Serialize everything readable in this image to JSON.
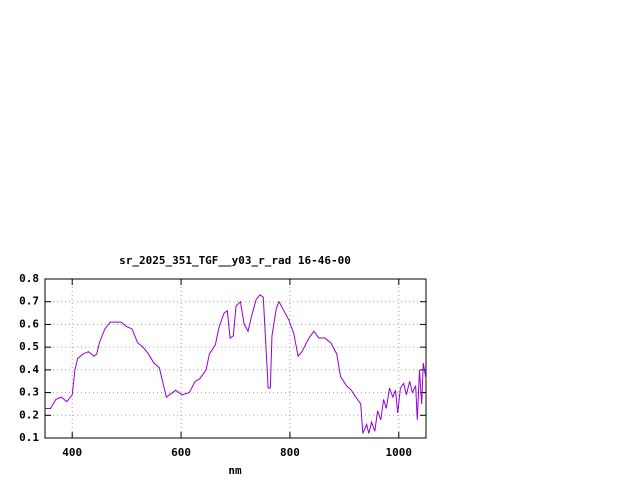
{
  "chart_data": {
    "type": "line",
    "title": "sr_2025_351_TGF__y03_r_rad 16-46-00",
    "x_label": "nm",
    "xlim": [
      350,
      1050
    ],
    "xticks": [
      400,
      600,
      800,
      1000
    ],
    "ylim": [
      0.1,
      0.8
    ],
    "yticks": [
      0.1,
      0.2,
      0.3,
      0.4,
      0.5,
      0.6,
      0.7,
      0.8
    ],
    "grid": true,
    "x": [
      350,
      360,
      370,
      380,
      390,
      400,
      405,
      410,
      420,
      430,
      440,
      445,
      450,
      460,
      470,
      480,
      490,
      500,
      510,
      520,
      530,
      540,
      550,
      560,
      573,
      590,
      602,
      615,
      626,
      634,
      646,
      652,
      663,
      670,
      679,
      685,
      690,
      696,
      701,
      709,
      716,
      723,
      731,
      738,
      745,
      751,
      756,
      760,
      764,
      767,
      775,
      780,
      789,
      798,
      807,
      815,
      822,
      835,
      844,
      853,
      864,
      875,
      886,
      893,
      904,
      913,
      921,
      930,
      934,
      941,
      945,
      950,
      956,
      961,
      967,
      972,
      977,
      983,
      989,
      994,
      998,
      1003,
      1009,
      1014,
      1020,
      1025,
      1031,
      1034,
      1038,
      1042,
      1045,
      1050
    ],
    "series": [
      {
        "color": "#9400d3",
        "values": [
          0.23,
          0.23,
          0.27,
          0.28,
          0.26,
          0.29,
          0.4,
          0.45,
          0.47,
          0.48,
          0.46,
          0.47,
          0.52,
          0.58,
          0.61,
          0.61,
          0.61,
          0.59,
          0.58,
          0.52,
          0.5,
          0.47,
          0.43,
          0.41,
          0.28,
          0.31,
          0.29,
          0.3,
          0.35,
          0.36,
          0.4,
          0.47,
          0.51,
          0.59,
          0.65,
          0.66,
          0.54,
          0.55,
          0.68,
          0.7,
          0.6,
          0.57,
          0.65,
          0.71,
          0.73,
          0.72,
          0.5,
          0.32,
          0.32,
          0.55,
          0.67,
          0.7,
          0.66,
          0.62,
          0.56,
          0.46,
          0.48,
          0.54,
          0.57,
          0.54,
          0.54,
          0.52,
          0.47,
          0.37,
          0.33,
          0.31,
          0.28,
          0.25,
          0.12,
          0.16,
          0.12,
          0.17,
          0.13,
          0.22,
          0.18,
          0.27,
          0.23,
          0.32,
          0.28,
          0.31,
          0.21,
          0.32,
          0.34,
          0.29,
          0.35,
          0.3,
          0.33,
          0.18,
          0.4,
          0.25,
          0.43,
          0.36
        ]
      }
    ]
  }
}
